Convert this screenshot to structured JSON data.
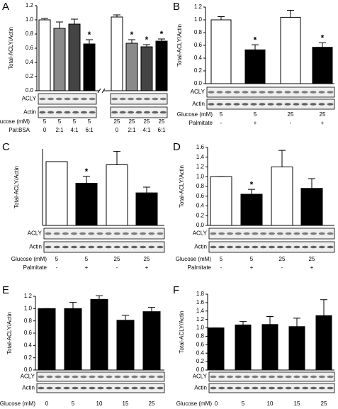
{
  "chart_data": [
    {
      "type": "bar",
      "panel": "A",
      "ylabel": "Total-ACLY/Actin",
      "categories": [
        "5",
        "5",
        "5",
        "5",
        "25",
        "25",
        "25",
        "25"
      ],
      "category_label": "Glucose (mM)",
      "treatment_label": "Pal:BSA",
      "treatment": [
        "0",
        "2:1",
        "4:1",
        "6:1",
        "0",
        "2:1",
        "4:1",
        "6:1"
      ],
      "values": [
        1.0,
        0.88,
        0.94,
        0.66,
        1.04,
        0.67,
        0.62,
        0.7
      ],
      "errors": [
        0.02,
        0.09,
        0.07,
        0.06,
        0.03,
        0.05,
        0.03,
        0.03
      ],
      "colors": [
        "#ffffff",
        "#8a8a8a",
        "#444444",
        "#000000",
        "#ffffff",
        "#8a8a8a",
        "#444444",
        "#000000"
      ],
      "markers": [
        null,
        null,
        null,
        "*",
        null,
        "*",
        "*",
        "*"
      ],
      "blots": [
        "ACLY",
        "Actin"
      ],
      "ylim": [
        0,
        1.2
      ],
      "yticks": [
        {
          "value": 0,
          "label": "0.0"
        },
        0.2,
        0.4,
        0.6,
        0.8,
        {
          "value": 1,
          "label": "1.0"
        },
        1.2
      ]
    },
    {
      "type": "bar",
      "panel": "B",
      "ylabel": "Total-ACLY/Actin",
      "categories": [
        "5",
        "5",
        "25",
        "25"
      ],
      "category_label": "Glucose (mM)",
      "treatment_label": "Palmitate",
      "treatment": [
        "-",
        "+",
        "-",
        "+"
      ],
      "values": [
        1.0,
        0.53,
        1.04,
        0.57
      ],
      "errors": [
        0.05,
        0.08,
        0.11,
        0.07
      ],
      "colors": [
        "#ffffff",
        "#000000",
        "#ffffff",
        "#000000"
      ],
      "markers": [
        null,
        "*",
        null,
        "*"
      ],
      "blots": [
        "ACLY",
        "Actin"
      ],
      "ylim": [
        0,
        1.2
      ],
      "yticks": [
        {
          "value": 0,
          "label": "0.0"
        },
        0.2,
        0.4,
        0.6,
        0.8,
        {
          "value": 1,
          "label": "1.0"
        },
        1.2
      ]
    },
    {
      "type": "bar",
      "panel": "C",
      "ylabel": "Total-ACLY/Actin",
      "categories": [
        "5",
        "5",
        "25",
        "25"
      ],
      "category_label": "Glucose (mM)",
      "treatment_label": "Palmitate",
      "treatment": [
        "-",
        "+",
        "-",
        "+"
      ],
      "values": [
        1.0,
        0.66,
        0.95,
        0.51
      ],
      "errors": [
        0,
        0.11,
        0.21,
        0.09
      ],
      "colors": [
        "#ffffff",
        "#000000",
        "#ffffff",
        "#000000"
      ],
      "markers": [
        null,
        "*",
        null,
        null
      ],
      "blots": [
        "ACLY",
        "Actin"
      ],
      "ylim": [
        0,
        1.2
      ]
    },
    {
      "type": "bar",
      "panel": "D",
      "ylabel": "Total-ACLY/Actin",
      "categories": [
        "5",
        "5",
        "25",
        "25"
      ],
      "category_label": "Glucose (mM)",
      "treatment_label": "Palmitate",
      "treatment": [
        "-",
        "+",
        "-",
        "+"
      ],
      "values": [
        1.0,
        0.64,
        1.2,
        0.76
      ],
      "errors": [
        0,
        0.1,
        0.34,
        0.2
      ],
      "colors": [
        "#ffffff",
        "#000000",
        "#ffffff",
        "#000000"
      ],
      "markers": [
        null,
        "*",
        null,
        null
      ],
      "blots": [
        "ACLY",
        "Actin"
      ],
      "ylim": [
        0,
        1.6
      ],
      "yticks": [
        {
          "value": 0,
          "label": "0.0"
        },
        0.2,
        0.4,
        0.6,
        0.8,
        {
          "value": 1,
          "label": "1.0"
        },
        1.2,
        1.4,
        1.6
      ]
    },
    {
      "type": "bar",
      "panel": "E",
      "ylabel": "Total-ACLY/Actin",
      "categories": [
        "0",
        "5",
        "10",
        "15",
        "25"
      ],
      "category_label": "Glucose (mM)",
      "values": [
        1.0,
        1.0,
        1.15,
        0.81,
        0.95
      ],
      "errors": [
        0,
        0.1,
        0.06,
        0.08,
        0.07
      ],
      "colors": [
        "#000000",
        "#000000",
        "#000000",
        "#000000",
        "#000000"
      ],
      "blots": [
        "ACLY",
        "Actin"
      ],
      "ylim": [
        0,
        1.2
      ],
      "yticks": [
        {
          "value": 0,
          "label": "0.0"
        },
        0.2,
        0.4,
        0.6,
        0.8,
        {
          "value": 1,
          "label": "1.0"
        },
        1.2
      ]
    },
    {
      "type": "bar",
      "panel": "F",
      "ylabel": "Total-ACLY/Actin",
      "categories": [
        "0",
        "5",
        "10",
        "15",
        "25"
      ],
      "category_label": "Glucose (mM)",
      "values": [
        1.0,
        1.07,
        1.08,
        1.03,
        1.29
      ],
      "errors": [
        0,
        0.08,
        0.19,
        0.2,
        0.38
      ],
      "colors": [
        "#000000",
        "#000000",
        "#000000",
        "#000000",
        "#000000"
      ],
      "blots": [
        "ACLY",
        "Actin"
      ],
      "ylim": [
        0,
        1.8
      ],
      "yticks": [
        {
          "value": 0,
          "label": "0.0"
        },
        0.2,
        0.4,
        0.6,
        0.8,
        {
          "value": 1,
          "label": "1.0"
        },
        1.2,
        1.4,
        1.6,
        1.8
      ]
    }
  ]
}
